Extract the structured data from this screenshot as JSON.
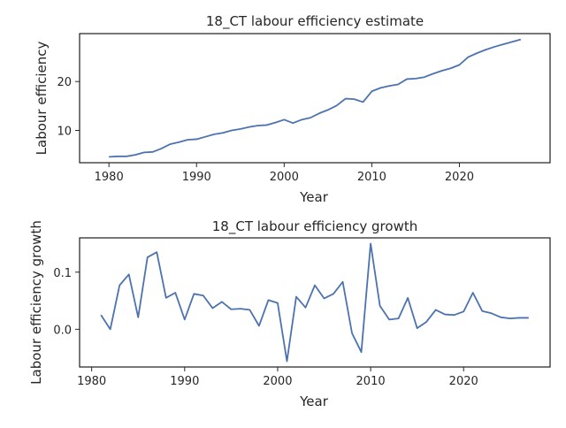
{
  "chart_data": [
    {
      "type": "line",
      "title": "18_CT labour efficiency estimate",
      "xlabel": "Year",
      "ylabel": "Labour efficiency",
      "x": [
        1980,
        1981,
        1982,
        1983,
        1984,
        1985,
        1986,
        1987,
        1988,
        1989,
        1990,
        1991,
        1992,
        1993,
        1994,
        1995,
        1996,
        1997,
        1998,
        1999,
        2000,
        2001,
        2002,
        2003,
        2004,
        2005,
        2006,
        2007,
        2008,
        2009,
        2010,
        2011,
        2012,
        2013,
        2014,
        2015,
        2016,
        2017,
        2018,
        2019,
        2020,
        2021,
        2022,
        2023,
        2024,
        2025,
        2026,
        2027
      ],
      "series": [
        {
          "values": [
            4.6,
            4.7,
            4.7,
            5.0,
            5.5,
            5.6,
            6.3,
            7.2,
            7.6,
            8.1,
            8.2,
            8.7,
            9.2,
            9.5,
            10.0,
            10.3,
            10.7,
            11.0,
            11.1,
            11.6,
            12.2,
            11.5,
            12.2,
            12.6,
            13.5,
            14.2,
            15.1,
            16.5,
            16.4,
            15.8,
            18.0,
            18.7,
            19.1,
            19.4,
            20.5,
            20.6,
            20.9,
            21.6,
            22.2,
            22.7,
            23.4,
            25.0,
            25.8,
            26.5,
            27.1,
            27.6,
            28.1,
            28.6
          ]
        }
      ],
      "xlim": [
        1976.65,
        2030.35
      ],
      "ylim": [
        3.4,
        29.8
      ],
      "xticks": [
        "1980",
        "1990",
        "2000",
        "2010",
        "2020"
      ],
      "yticks": [
        "10",
        "20"
      ]
    },
    {
      "type": "line",
      "title": "18_CT labour efficiency growth",
      "xlabel": "Year",
      "ylabel": "Labour efficiency growth",
      "x": [
        1981,
        1982,
        1983,
        1984,
        1985,
        1986,
        1987,
        1988,
        1989,
        1990,
        1991,
        1992,
        1993,
        1994,
        1995,
        1996,
        1997,
        1998,
        1999,
        2000,
        2001,
        2002,
        2003,
        2004,
        2005,
        2006,
        2007,
        2008,
        2009,
        2010,
        2011,
        2012,
        2013,
        2014,
        2015,
        2016,
        2017,
        2018,
        2019,
        2020,
        2021,
        2022,
        2023,
        2024,
        2025,
        2026,
        2027
      ],
      "series": [
        {
          "values": [
            0.025,
            0.0,
            0.077,
            0.096,
            0.021,
            0.126,
            0.135,
            0.055,
            0.064,
            0.017,
            0.062,
            0.059,
            0.037,
            0.048,
            0.035,
            0.036,
            0.034,
            0.006,
            0.051,
            0.046,
            -0.056,
            0.057,
            0.038,
            0.077,
            0.054,
            0.062,
            0.083,
            -0.007,
            -0.04,
            0.15,
            0.041,
            0.017,
            0.019,
            0.055,
            0.002,
            0.013,
            0.034,
            0.026,
            0.025,
            0.031,
            0.064,
            0.032,
            0.028,
            0.021,
            0.019,
            0.02,
            0.02
          ]
        }
      ],
      "xlim": [
        1978.7,
        2029.3
      ],
      "ylim": [
        -0.066,
        0.16
      ],
      "xticks": [
        "1980",
        "1990",
        "2000",
        "2010",
        "2020"
      ],
      "yticks": [
        "0.0",
        "0.1"
      ]
    }
  ]
}
